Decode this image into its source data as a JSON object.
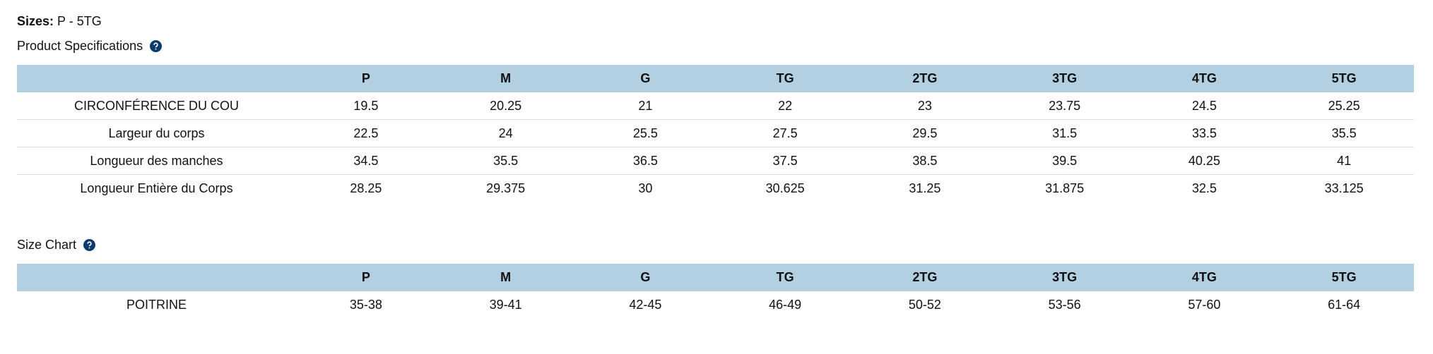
{
  "header": {
    "sizes_label": "Sizes:",
    "sizes_value": "P - 5TG"
  },
  "spec": {
    "title": "Product Specifications",
    "columns": [
      "P",
      "M",
      "G",
      "TG",
      "2TG",
      "3TG",
      "4TG",
      "5TG"
    ],
    "rows": [
      [
        "CIRCONFÉRENCE DU COU",
        19.5,
        20.25,
        21,
        22,
        23,
        23.75,
        24.5,
        25.25
      ],
      [
        "Largeur du corps",
        22.5,
        24,
        25.5,
        27.5,
        29.5,
        31.5,
        33.5,
        35.5
      ],
      [
        "Longueur des manches",
        34.5,
        35.5,
        36.5,
        37.5,
        38.5,
        39.5,
        40.25,
        41
      ],
      [
        "Longueur Entière du Corps",
        28.25,
        29.375,
        30,
        30.625,
        31.25,
        31.875,
        32.5,
        33.125
      ]
    ]
  },
  "size_chart": {
    "title": "Size Chart",
    "columns": [
      "P",
      "M",
      "G",
      "TG",
      "2TG",
      "3TG",
      "4TG",
      "5TG"
    ],
    "rows": [
      [
        "POITRINE",
        "35-38",
        "39-41",
        "42-45",
        "46-49",
        "50-52",
        "53-56",
        "57-60",
        "61-64"
      ]
    ]
  }
}
